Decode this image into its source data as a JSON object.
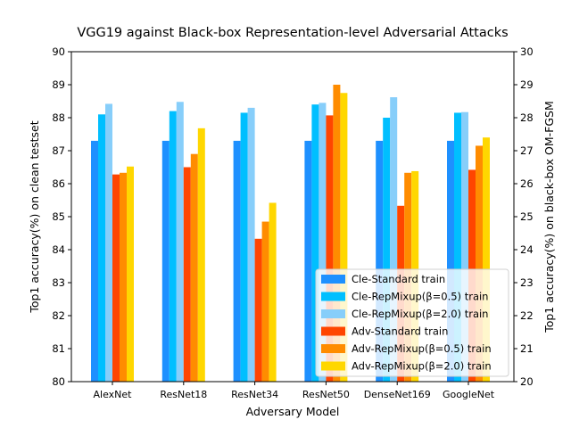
{
  "chart_data": {
    "type": "bar",
    "title": "VGG19 against Black-box Representation-level Adversarial Attacks",
    "xlabel": "Adversary Model",
    "ylabel_left": "Top1 accuracy(%) on clean testset",
    "ylabel_right": "Top1 accuracy(%) on black-box OM-FGSM",
    "ylim_left": [
      80,
      90
    ],
    "ylim_right": [
      20,
      30
    ],
    "yticks_left": [
      "80",
      "81",
      "82",
      "83",
      "84",
      "85",
      "86",
      "87",
      "88",
      "89",
      "90"
    ],
    "yticks_right": [
      "20",
      "21",
      "22",
      "23",
      "24",
      "25",
      "26",
      "27",
      "28",
      "29",
      "30"
    ],
    "categories": [
      "AlexNet",
      "ResNet18",
      "ResNet34",
      "ResNet50",
      "DenseNet169",
      "GoogleNet"
    ],
    "legend_position": "lower-right",
    "grid": false,
    "series": [
      {
        "name": "Cle-Standard train",
        "axis": "left",
        "color": "#1e90ff",
        "values": [
          87.3,
          87.3,
          87.3,
          87.3,
          87.3,
          87.3
        ]
      },
      {
        "name": "Cle-RepMixup(β=0.5) train",
        "axis": "left",
        "color": "#00bfff",
        "values": [
          88.1,
          88.2,
          88.15,
          88.4,
          88.0,
          88.15
        ]
      },
      {
        "name": "Cle-RepMixup(β=2.0) train",
        "axis": "left",
        "color": "#87cefa",
        "values": [
          88.42,
          88.48,
          88.3,
          88.45,
          88.62,
          88.17
        ]
      },
      {
        "name": "Adv-Standard train",
        "axis": "right",
        "color": "#ff4500",
        "values": [
          26.28,
          26.5,
          24.33,
          28.07,
          25.33,
          26.42
        ]
      },
      {
        "name": "Adv-RepMixup(β=0.5) train",
        "axis": "right",
        "color": "#ff8c00",
        "values": [
          26.33,
          26.9,
          24.85,
          29.0,
          26.33,
          27.15
        ]
      },
      {
        "name": "Adv-RepMixup(β=2.0) train",
        "axis": "right",
        "color": "#ffd700",
        "values": [
          26.52,
          27.68,
          25.42,
          28.75,
          26.38,
          27.4
        ]
      }
    ]
  }
}
